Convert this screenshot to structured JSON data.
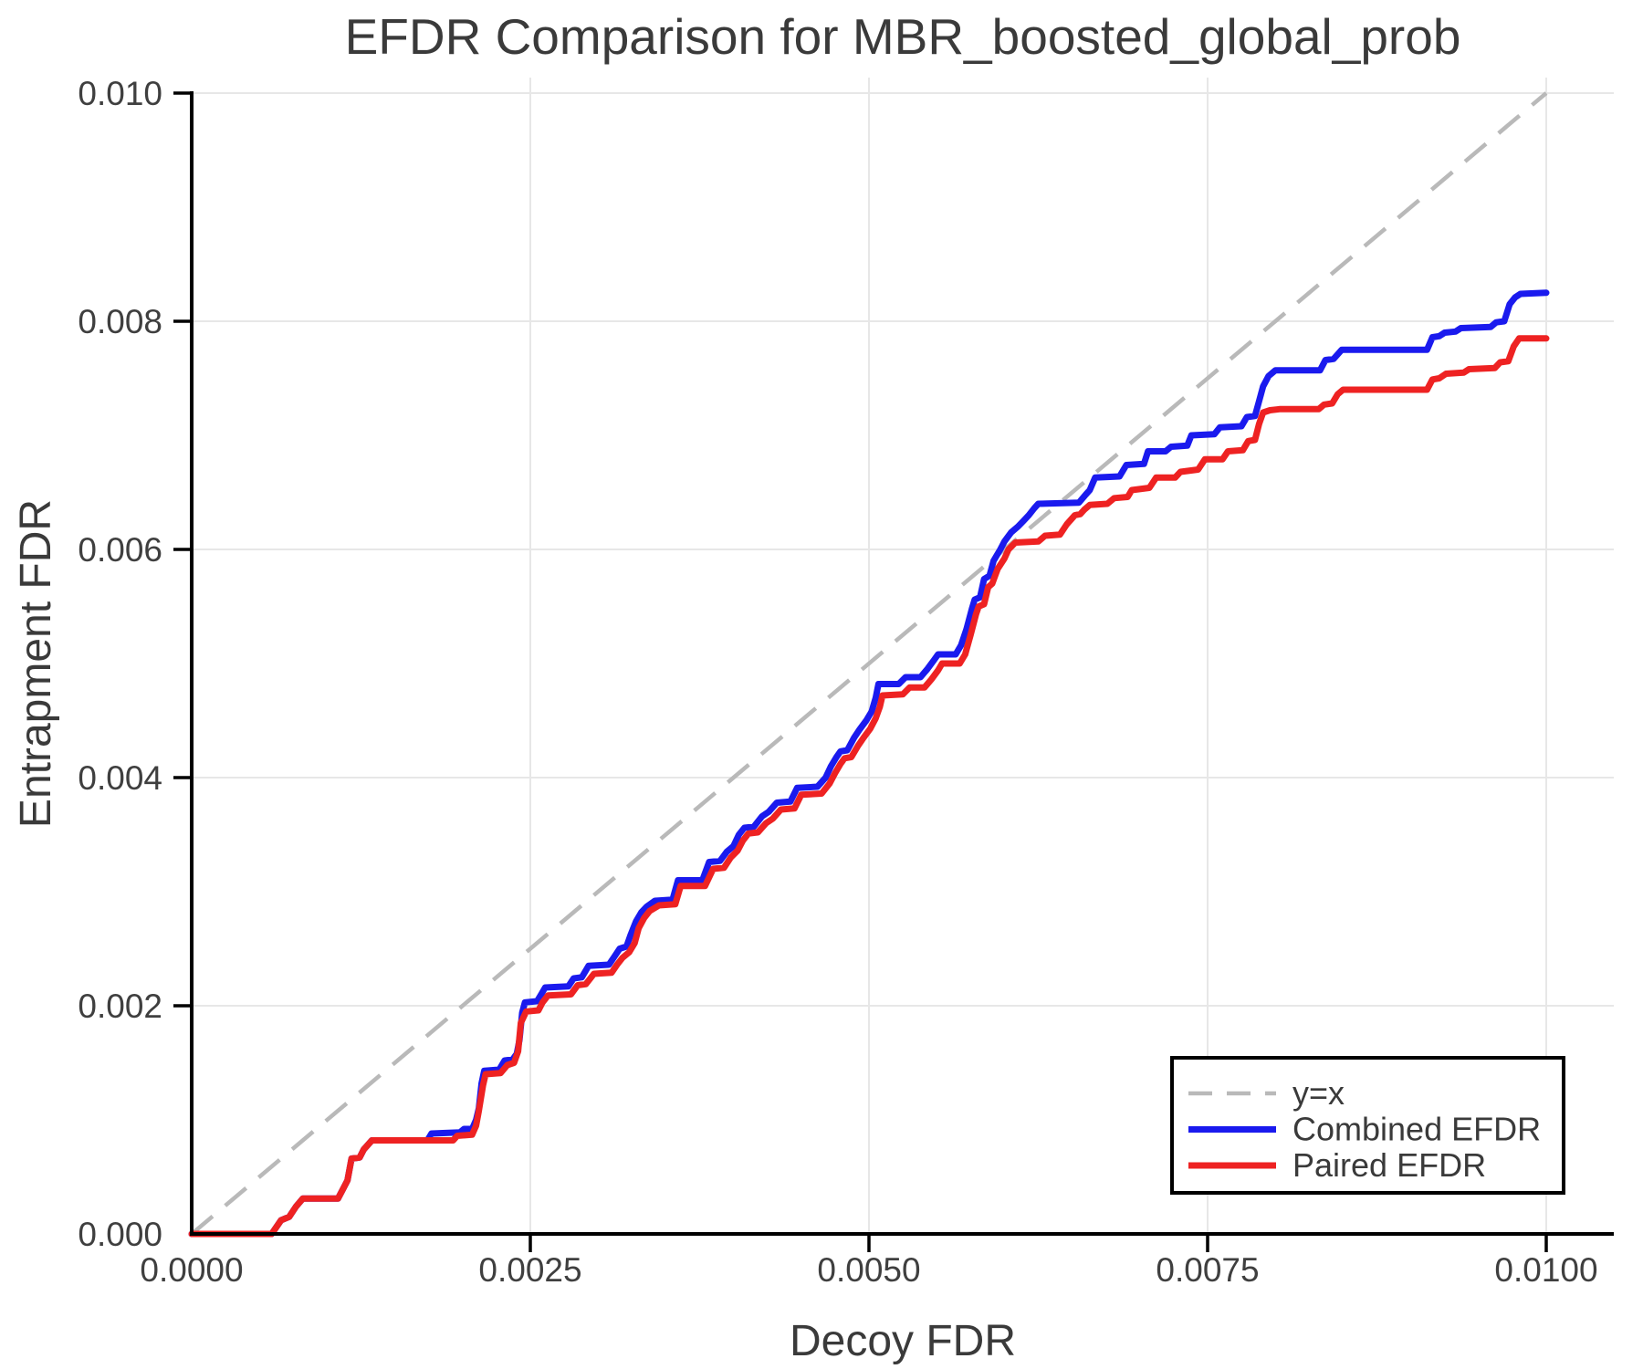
{
  "title": "EFDR Comparison for MBR_boosted_global_prob",
  "xlabel": "Decoy FDR",
  "ylabel": "Entrapment FDR",
  "colors": {
    "combined": "#1a1aee",
    "paired": "#ee2222",
    "diagonal": "#b9b9b9",
    "grid": "#e7e7e7",
    "spine": "#000000",
    "text": "#3a3a3a",
    "tick_text": "#3f3f3f"
  },
  "legend": {
    "items": [
      {
        "label": "y=x",
        "style": "dashed",
        "color": "#b9b9b9"
      },
      {
        "label": "Combined EFDR",
        "style": "solid",
        "color": "#1a1aee"
      },
      {
        "label": "Paired EFDR",
        "style": "solid",
        "color": "#ee2222"
      }
    ]
  },
  "chart_data": {
    "type": "line",
    "title": "EFDR Comparison for MBR_boosted_global_prob",
    "xlabel": "Decoy FDR",
    "ylabel": "Entrapment FDR",
    "xlim": [
      0,
      0.0105
    ],
    "ylim": [
      0,
      0.01014
    ],
    "grid": true,
    "legend_position": "lower right",
    "xticks": {
      "values": [
        0,
        0.0025,
        0.005,
        0.0075,
        0.01
      ],
      "labels": [
        "0.0000",
        "0.0025",
        "0.0050",
        "0.0075",
        "0.0100"
      ]
    },
    "yticks": {
      "values": [
        0,
        0.002,
        0.004,
        0.006,
        0.008,
        0.01
      ],
      "labels": [
        "0.000",
        "0.002",
        "0.004",
        "0.006",
        "0.008",
        "0.010"
      ]
    },
    "diagonal": {
      "name": "y=x",
      "from": [
        0,
        0
      ],
      "to": [
        0.01,
        0.01
      ]
    },
    "series": [
      {
        "name": "Combined EFDR",
        "color": "#1a1aee",
        "points": [
          [
            0,
            0
          ],
          [
            0.00059,
            0
          ],
          [
            0.00066,
            0.00012
          ],
          [
            0.00072,
            0.00015
          ],
          [
            0.00077,
            0.00024
          ],
          [
            0.00082,
            0.00031
          ],
          [
            0.00108,
            0.00031
          ],
          [
            0.00112,
            0.0004
          ],
          [
            0.00115,
            0.00047
          ],
          [
            0.00118,
            0.00066
          ],
          [
            0.00124,
            0.00067
          ],
          [
            0.00127,
            0.00074
          ],
          [
            0.00133,
            0.00082
          ],
          [
            0.00174,
            0.00082
          ],
          [
            0.00177,
            0.00088
          ],
          [
            0.00198,
            0.00089
          ],
          [
            0.00201,
            0.00092
          ],
          [
            0.00207,
            0.00092
          ],
          [
            0.0021,
            0.001
          ],
          [
            0.00212,
            0.0011
          ],
          [
            0.00214,
            0.00132
          ],
          [
            0.00216,
            0.00143
          ],
          [
            0.00227,
            0.00144
          ],
          [
            0.00231,
            0.00152
          ],
          [
            0.00237,
            0.00153
          ],
          [
            0.0024,
            0.00158
          ],
          [
            0.00242,
            0.0017
          ],
          [
            0.00244,
            0.00194
          ],
          [
            0.00246,
            0.00203
          ],
          [
            0.00255,
            0.00204
          ],
          [
            0.00258,
            0.0021
          ],
          [
            0.00261,
            0.00216
          ],
          [
            0.00278,
            0.00217
          ],
          [
            0.00282,
            0.00224
          ],
          [
            0.00288,
            0.00225
          ],
          [
            0.00293,
            0.00235
          ],
          [
            0.00308,
            0.00236
          ],
          [
            0.00312,
            0.00243
          ],
          [
            0.00316,
            0.0025
          ],
          [
            0.00321,
            0.00252
          ],
          [
            0.00324,
            0.00262
          ],
          [
            0.00328,
            0.00274
          ],
          [
            0.00332,
            0.00282
          ],
          [
            0.00336,
            0.00287
          ],
          [
            0.00342,
            0.00292
          ],
          [
            0.00355,
            0.00293
          ],
          [
            0.00359,
            0.0031
          ],
          [
            0.00377,
            0.0031
          ],
          [
            0.00382,
            0.00326
          ],
          [
            0.0039,
            0.00327
          ],
          [
            0.00395,
            0.00335
          ],
          [
            0.004,
            0.0034
          ],
          [
            0.00404,
            0.0035
          ],
          [
            0.00408,
            0.00356
          ],
          [
            0.00415,
            0.00357
          ],
          [
            0.00421,
            0.00366
          ],
          [
            0.00426,
            0.0037
          ],
          [
            0.00432,
            0.00378
          ],
          [
            0.00442,
            0.00379
          ],
          [
            0.00447,
            0.00391
          ],
          [
            0.00462,
            0.00392
          ],
          [
            0.00468,
            0.004
          ],
          [
            0.00472,
            0.0041
          ],
          [
            0.00476,
            0.00418
          ],
          [
            0.00479,
            0.00423
          ],
          [
            0.00484,
            0.00424
          ],
          [
            0.00489,
            0.00435
          ],
          [
            0.00493,
            0.00442
          ],
          [
            0.00498,
            0.0045
          ],
          [
            0.00502,
            0.00458
          ],
          [
            0.00505,
            0.0047
          ],
          [
            0.00507,
            0.00482
          ],
          [
            0.00522,
            0.00482
          ],
          [
            0.00527,
            0.00488
          ],
          [
            0.00538,
            0.00488
          ],
          [
            0.00543,
            0.00495
          ],
          [
            0.00548,
            0.00503
          ],
          [
            0.00551,
            0.00508
          ],
          [
            0.00564,
            0.00508
          ],
          [
            0.00568,
            0.00516
          ],
          [
            0.00572,
            0.0053
          ],
          [
            0.00576,
            0.00548
          ],
          [
            0.00578,
            0.00556
          ],
          [
            0.00582,
            0.00558
          ],
          [
            0.00585,
            0.00574
          ],
          [
            0.00589,
            0.00577
          ],
          [
            0.00592,
            0.0059
          ],
          [
            0.00597,
            0.006
          ],
          [
            0.006,
            0.00607
          ],
          [
            0.00605,
            0.00615
          ],
          [
            0.0061,
            0.0062
          ],
          [
            0.00614,
            0.00625
          ],
          [
            0.00618,
            0.0063
          ],
          [
            0.00622,
            0.00636
          ],
          [
            0.00625,
            0.0064
          ],
          [
            0.00655,
            0.00641
          ],
          [
            0.0066,
            0.00648
          ],
          [
            0.00663,
            0.00652
          ],
          [
            0.00667,
            0.00663
          ],
          [
            0.00685,
            0.00664
          ],
          [
            0.0069,
            0.00674
          ],
          [
            0.00703,
            0.00675
          ],
          [
            0.00706,
            0.00686
          ],
          [
            0.00719,
            0.00686
          ],
          [
            0.00723,
            0.0069
          ],
          [
            0.00735,
            0.00691
          ],
          [
            0.00738,
            0.007
          ],
          [
            0.00755,
            0.00701
          ],
          [
            0.00759,
            0.00707
          ],
          [
            0.00775,
            0.00708
          ],
          [
            0.00779,
            0.00716
          ],
          [
            0.00785,
            0.00717
          ],
          [
            0.00788,
            0.0073
          ],
          [
            0.00791,
            0.00743
          ],
          [
            0.00795,
            0.00752
          ],
          [
            0.008,
            0.00757
          ],
          [
            0.00833,
            0.00757
          ],
          [
            0.00837,
            0.00766
          ],
          [
            0.00843,
            0.00767
          ],
          [
            0.00849,
            0.00775
          ],
          [
            0.00912,
            0.00775
          ],
          [
            0.00916,
            0.00786
          ],
          [
            0.00921,
            0.00787
          ],
          [
            0.00925,
            0.0079
          ],
          [
            0.00933,
            0.00791
          ],
          [
            0.00937,
            0.00794
          ],
          [
            0.00959,
            0.00795
          ],
          [
            0.00963,
            0.00799
          ],
          [
            0.00969,
            0.008
          ],
          [
            0.00973,
            0.00815
          ],
          [
            0.00977,
            0.00821
          ],
          [
            0.00981,
            0.00824
          ],
          [
            0.01,
            0.00825
          ]
        ]
      },
      {
        "name": "Paired EFDR",
        "color": "#ee2222",
        "points": [
          [
            0,
            0
          ],
          [
            0.00059,
            0
          ],
          [
            0.00066,
            0.00012
          ],
          [
            0.00072,
            0.00015
          ],
          [
            0.00077,
            0.00024
          ],
          [
            0.00082,
            0.00031
          ],
          [
            0.00108,
            0.00031
          ],
          [
            0.00112,
            0.0004
          ],
          [
            0.00115,
            0.00047
          ],
          [
            0.00118,
            0.00066
          ],
          [
            0.00124,
            0.00067
          ],
          [
            0.00127,
            0.00074
          ],
          [
            0.00133,
            0.00082
          ],
          [
            0.00193,
            0.00082
          ],
          [
            0.00196,
            0.00086
          ],
          [
            0.00207,
            0.00087
          ],
          [
            0.0021,
            0.00095
          ],
          [
            0.00212,
            0.00108
          ],
          [
            0.00215,
            0.0013
          ],
          [
            0.00217,
            0.0014
          ],
          [
            0.00228,
            0.00141
          ],
          [
            0.00233,
            0.00148
          ],
          [
            0.00238,
            0.0015
          ],
          [
            0.00241,
            0.0016
          ],
          [
            0.00243,
            0.00185
          ],
          [
            0.00247,
            0.00195
          ],
          [
            0.00256,
            0.00196
          ],
          [
            0.00259,
            0.00203
          ],
          [
            0.00263,
            0.00209
          ],
          [
            0.0028,
            0.0021
          ],
          [
            0.00285,
            0.00218
          ],
          [
            0.00291,
            0.00219
          ],
          [
            0.00297,
            0.00228
          ],
          [
            0.0031,
            0.00229
          ],
          [
            0.00314,
            0.00236
          ],
          [
            0.00318,
            0.00242
          ],
          [
            0.00323,
            0.00247
          ],
          [
            0.00327,
            0.00255
          ],
          [
            0.0033,
            0.00268
          ],
          [
            0.00334,
            0.00277
          ],
          [
            0.00338,
            0.00283
          ],
          [
            0.00345,
            0.00288
          ],
          [
            0.00357,
            0.00289
          ],
          [
            0.00361,
            0.00305
          ],
          [
            0.00379,
            0.00305
          ],
          [
            0.00385,
            0.0032
          ],
          [
            0.00393,
            0.00321
          ],
          [
            0.00398,
            0.0033
          ],
          [
            0.00403,
            0.00336
          ],
          [
            0.00407,
            0.00345
          ],
          [
            0.00411,
            0.00351
          ],
          [
            0.00418,
            0.00352
          ],
          [
            0.00424,
            0.0036
          ],
          [
            0.00429,
            0.00364
          ],
          [
            0.00435,
            0.00372
          ],
          [
            0.00445,
            0.00373
          ],
          [
            0.0045,
            0.00385
          ],
          [
            0.00465,
            0.00386
          ],
          [
            0.00471,
            0.00395
          ],
          [
            0.00475,
            0.00404
          ],
          [
            0.00479,
            0.00412
          ],
          [
            0.00482,
            0.00417
          ],
          [
            0.00487,
            0.00418
          ],
          [
            0.00492,
            0.00428
          ],
          [
            0.00496,
            0.00435
          ],
          [
            0.00501,
            0.00443
          ],
          [
            0.00505,
            0.00452
          ],
          [
            0.00508,
            0.00462
          ],
          [
            0.0051,
            0.00472
          ],
          [
            0.00525,
            0.00473
          ],
          [
            0.0053,
            0.00479
          ],
          [
            0.00541,
            0.00479
          ],
          [
            0.00546,
            0.00486
          ],
          [
            0.00551,
            0.00494
          ],
          [
            0.00554,
            0.005
          ],
          [
            0.00567,
            0.005
          ],
          [
            0.00571,
            0.00508
          ],
          [
            0.00575,
            0.00525
          ],
          [
            0.00579,
            0.00543
          ],
          [
            0.00581,
            0.0055
          ],
          [
            0.00585,
            0.00552
          ],
          [
            0.00588,
            0.00567
          ],
          [
            0.00591,
            0.0057
          ],
          [
            0.00595,
            0.00583
          ],
          [
            0.006,
            0.00592
          ],
          [
            0.00603,
            0.006
          ],
          [
            0.00608,
            0.00606
          ],
          [
            0.00625,
            0.00607
          ],
          [
            0.0063,
            0.00612
          ],
          [
            0.00641,
            0.00613
          ],
          [
            0.00646,
            0.00622
          ],
          [
            0.00652,
            0.0063
          ],
          [
            0.00656,
            0.00631
          ],
          [
            0.00659,
            0.00635
          ],
          [
            0.00663,
            0.00639
          ],
          [
            0.00676,
            0.0064
          ],
          [
            0.00681,
            0.00645
          ],
          [
            0.00691,
            0.00646
          ],
          [
            0.00694,
            0.00652
          ],
          [
            0.00707,
            0.00654
          ],
          [
            0.00712,
            0.00663
          ],
          [
            0.00726,
            0.00663
          ],
          [
            0.0073,
            0.00668
          ],
          [
            0.00743,
            0.0067
          ],
          [
            0.00748,
            0.00679
          ],
          [
            0.00761,
            0.00679
          ],
          [
            0.00765,
            0.00686
          ],
          [
            0.00776,
            0.00687
          ],
          [
            0.0078,
            0.00695
          ],
          [
            0.00785,
            0.00696
          ],
          [
            0.00788,
            0.0071
          ],
          [
            0.00791,
            0.0072
          ],
          [
            0.00796,
            0.00722
          ],
          [
            0.00803,
            0.00723
          ],
          [
            0.00832,
            0.00723
          ],
          [
            0.00836,
            0.00727
          ],
          [
            0.00842,
            0.00728
          ],
          [
            0.00846,
            0.00736
          ],
          [
            0.0085,
            0.0074
          ],
          [
            0.00912,
            0.0074
          ],
          [
            0.00916,
            0.00749
          ],
          [
            0.00921,
            0.0075
          ],
          [
            0.00926,
            0.00754
          ],
          [
            0.00939,
            0.00755
          ],
          [
            0.00943,
            0.00758
          ],
          [
            0.00962,
            0.00759
          ],
          [
            0.00966,
            0.00764
          ],
          [
            0.00972,
            0.00765
          ],
          [
            0.00976,
            0.00778
          ],
          [
            0.0098,
            0.00785
          ],
          [
            0.01,
            0.00785
          ]
        ]
      }
    ]
  }
}
